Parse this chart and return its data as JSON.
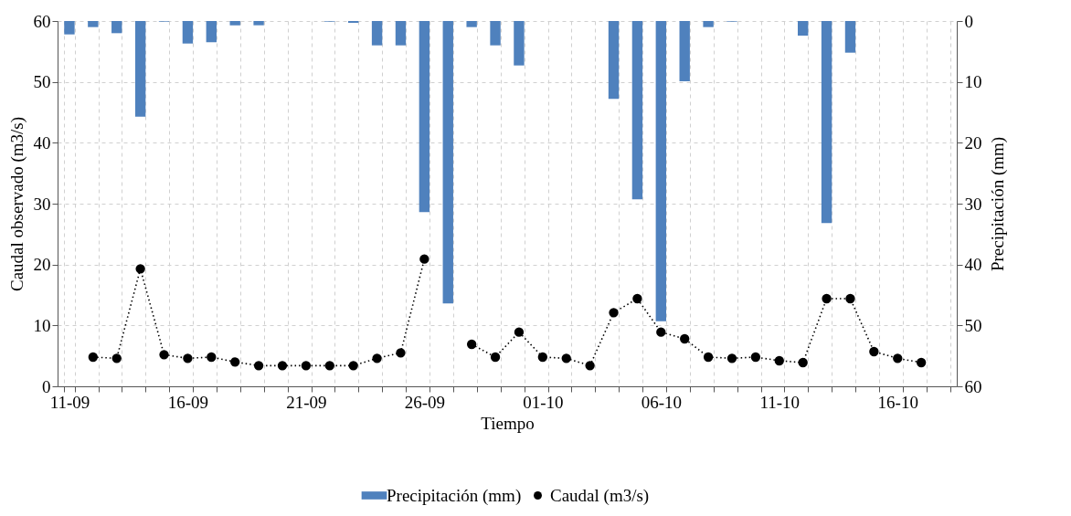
{
  "chart_data": {
    "type": "bar",
    "xlabel": "Tiempo",
    "ylabel": "Caudal observado (m3/s)",
    "y2label": "Precipitación (mm)",
    "categories": [
      "11-09",
      null,
      null,
      null,
      null,
      "16-09",
      null,
      null,
      null,
      null,
      "21-09",
      null,
      null,
      null,
      null,
      "26-09",
      null,
      null,
      null,
      null,
      "01-10",
      null,
      null,
      null,
      null,
      "06-10",
      null,
      null,
      null,
      null,
      "11-10",
      null,
      null,
      null,
      null,
      "16-10",
      null,
      null
    ],
    "series": [
      {
        "name": "Precipitación (mm)",
        "axis": "y2",
        "color": "#4f81bd",
        "values": [
          2.2,
          1.0,
          2.0,
          15.7,
          0.1,
          3.7,
          3.5,
          0.7,
          0.7,
          null,
          null,
          0.1,
          0.3,
          4.0,
          4.0,
          31.4,
          46.4,
          1.0,
          4.0,
          7.3,
          null,
          null,
          null,
          12.8,
          29.3,
          49.3,
          9.9,
          1.0,
          0.1,
          null,
          null,
          2.4,
          33.2,
          5.2,
          null,
          null,
          null,
          null
        ]
      },
      {
        "name": "Caudal (m3/s)",
        "type": "line",
        "color": "#000000",
        "marker": "circle",
        "line_style": "dotted",
        "values": [
          null,
          4.8,
          4.6,
          19.3,
          5.2,
          4.6,
          4.8,
          4.0,
          3.4,
          3.4,
          3.4,
          3.4,
          3.4,
          4.6,
          5.5,
          20.9,
          null,
          6.9,
          4.8,
          8.9,
          4.8,
          4.6,
          3.4,
          12.1,
          14.4,
          8.9,
          7.8,
          4.8,
          4.6,
          4.8,
          4.2,
          3.9,
          14.4,
          14.4,
          5.7,
          4.6,
          3.9,
          null
        ]
      }
    ],
    "ylim": [
      0,
      60
    ],
    "yticks": [
      0,
      10,
      20,
      30,
      40,
      50,
      60
    ],
    "y2lim": [
      60,
      0
    ],
    "y2ticks": [
      0,
      10,
      20,
      30,
      40,
      50,
      60
    ],
    "grid": true,
    "legend": "bottom"
  }
}
